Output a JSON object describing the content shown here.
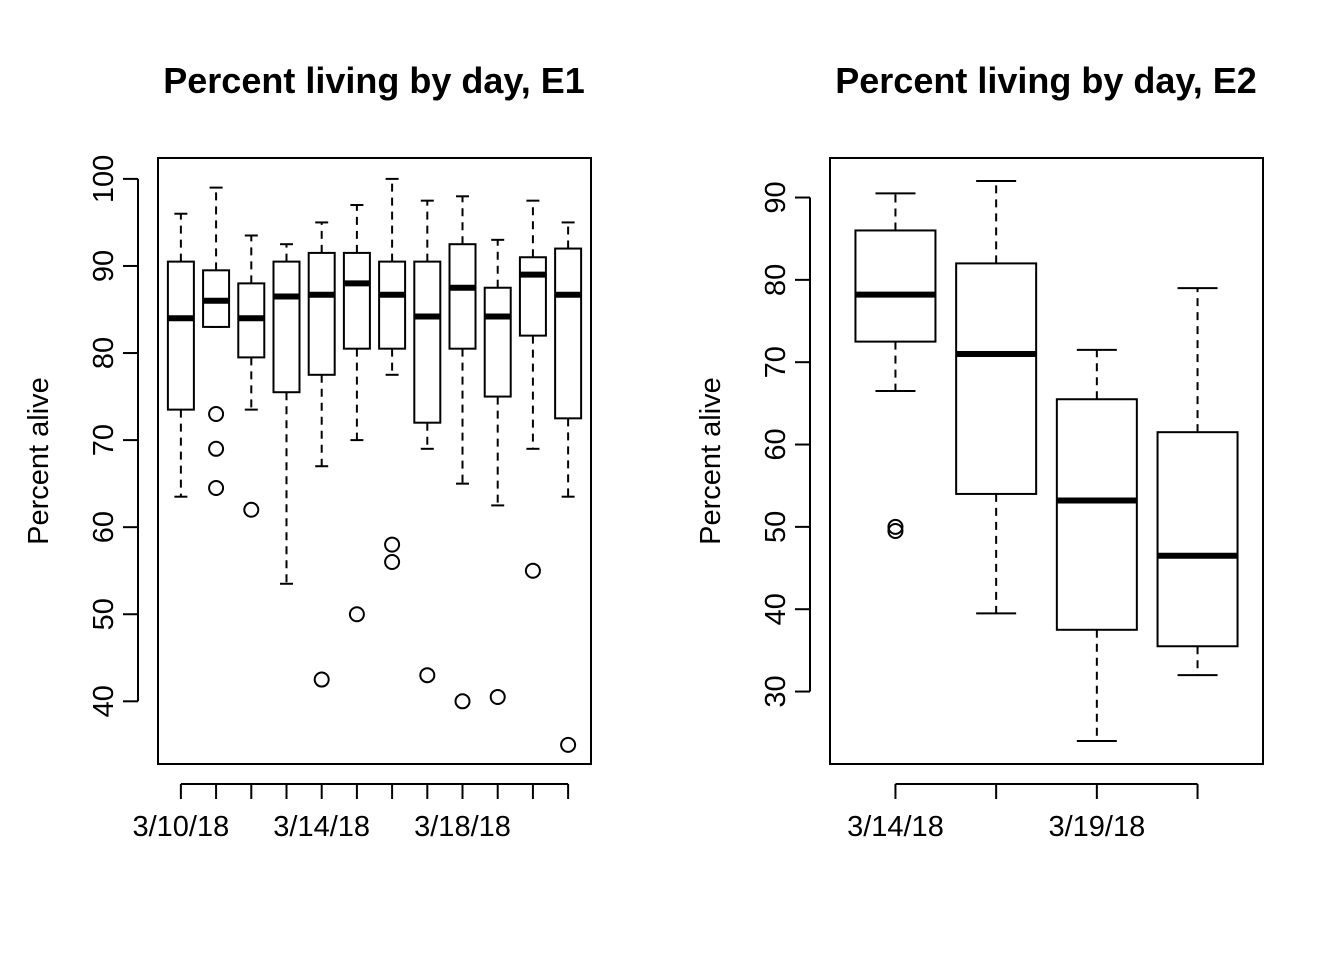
{
  "chart_data": [
    {
      "type": "boxplot",
      "title": "Percent living by day, E1",
      "xlabel": "",
      "ylabel": "Percent alive",
      "yticks": [
        40,
        50,
        60,
        70,
        80,
        90,
        100
      ],
      "ylim": [
        32.8,
        102.4
      ],
      "categories": [
        "3/10/18",
        "",
        "",
        "",
        "3/14/18",
        "",
        "",
        "",
        "3/18/18",
        "",
        "",
        ""
      ],
      "boxes": [
        {
          "whisker_low": 63.5,
          "q1": 73.5,
          "median": 84.0,
          "q3": 90.5,
          "whisker_high": 96.0,
          "outliers": []
        },
        {
          "whisker_low": 83.0,
          "q1": 83.0,
          "median": 86.0,
          "q3": 89.5,
          "whisker_high": 99.0,
          "outliers": [
            73.0,
            69.0,
            64.5
          ]
        },
        {
          "whisker_low": 73.5,
          "q1": 79.5,
          "median": 84.0,
          "q3": 88.0,
          "whisker_high": 93.5,
          "outliers": [
            62.0
          ]
        },
        {
          "whisker_low": 53.5,
          "q1": 75.5,
          "median": 86.5,
          "q3": 90.5,
          "whisker_high": 92.5,
          "outliers": []
        },
        {
          "whisker_low": 67.0,
          "q1": 77.5,
          "median": 86.7,
          "q3": 91.5,
          "whisker_high": 95.0,
          "outliers": [
            42.5
          ]
        },
        {
          "whisker_low": 70.0,
          "q1": 80.5,
          "median": 88.0,
          "q3": 91.5,
          "whisker_high": 97.0,
          "outliers": [
            50.0
          ]
        },
        {
          "whisker_low": 77.5,
          "q1": 80.5,
          "median": 86.7,
          "q3": 90.5,
          "whisker_high": 100.0,
          "outliers": [
            58.0,
            56.0
          ]
        },
        {
          "whisker_low": 69.0,
          "q1": 72.0,
          "median": 84.2,
          "q3": 90.5,
          "whisker_high": 97.5,
          "outliers": [
            43.0
          ]
        },
        {
          "whisker_low": 65.0,
          "q1": 80.5,
          "median": 87.5,
          "q3": 92.5,
          "whisker_high": 98.0,
          "outliers": [
            40.0
          ]
        },
        {
          "whisker_low": 62.5,
          "q1": 75.0,
          "median": 84.2,
          "q3": 87.5,
          "whisker_high": 93.0,
          "outliers": [
            40.5
          ]
        },
        {
          "whisker_low": 69.0,
          "q1": 82.0,
          "median": 89.0,
          "q3": 91.0,
          "whisker_high": 97.5,
          "outliers": [
            55.0
          ]
        },
        {
          "whisker_low": 63.5,
          "q1": 72.5,
          "median": 86.7,
          "q3": 92.0,
          "whisker_high": 95.0,
          "outliers": [
            35.0
          ]
        }
      ]
    },
    {
      "type": "boxplot",
      "title": "Percent living by day, E2",
      "xlabel": "",
      "ylabel": "Percent alive",
      "yticks": [
        30,
        40,
        50,
        60,
        70,
        80,
        90
      ],
      "ylim": [
        21.2,
        94.8
      ],
      "categories": [
        "3/14/18",
        "",
        "3/19/18",
        ""
      ],
      "boxes": [
        {
          "whisker_low": 66.5,
          "q1": 72.5,
          "median": 78.2,
          "q3": 86.0,
          "whisker_high": 90.5,
          "outliers": [
            50.0,
            49.5
          ]
        },
        {
          "whisker_low": 39.5,
          "q1": 54.0,
          "median": 71.0,
          "q3": 82.0,
          "whisker_high": 92.0,
          "outliers": []
        },
        {
          "whisker_low": 24.0,
          "q1": 37.5,
          "median": 53.2,
          "q3": 65.5,
          "whisker_high": 71.5,
          "outliers": []
        },
        {
          "whisker_low": 32.0,
          "q1": 35.5,
          "median": 46.5,
          "q3": 61.5,
          "whisker_high": 79.0,
          "outliers": []
        }
      ]
    }
  ]
}
